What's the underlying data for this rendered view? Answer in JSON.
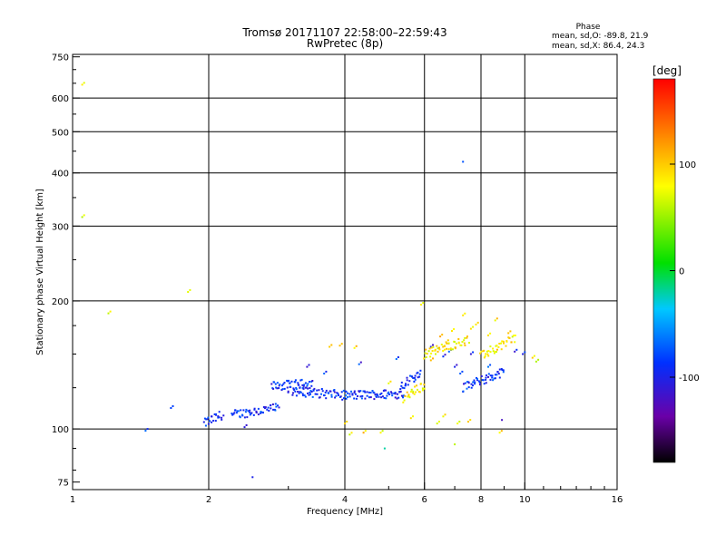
{
  "chart_data": {
    "type": "scatter",
    "title": "Tromsø 20171107 22:58:00–22:59:43",
    "subtitle": "RwPretec (8p)",
    "xlabel": "Frequency [MHz]",
    "ylabel": "Stationary phase Virtual Height [km]",
    "x_scale": "log",
    "y_scale": "log",
    "xlim": [
      1,
      16
    ],
    "ylim": [
      72,
      760
    ],
    "x_ticks": [
      1,
      2,
      4,
      6,
      8,
      10,
      16
    ],
    "x_tick_labels": [
      "1",
      "2",
      "4",
      "6",
      "8",
      "10",
      "16"
    ],
    "y_ticks": [
      75,
      100,
      200,
      300,
      400,
      500,
      600,
      750
    ],
    "y_tick_labels": [
      "75",
      "100",
      "200",
      "300",
      "400",
      "500",
      "600",
      "750"
    ],
    "x_grid": [
      2,
      4,
      6,
      8,
      10
    ],
    "y_grid": [
      100,
      200,
      300,
      400,
      500,
      600
    ],
    "grid": true,
    "stats": {
      "heading": "Phase",
      "line_o": "mean, sd,O: -89.8, 21.9",
      "line_x": "mean, sd,X:  86.4, 24.3"
    },
    "colorbar": {
      "label": "[deg]",
      "range": [
        -180,
        180
      ],
      "ticks": [
        -100,
        0,
        100
      ],
      "tick_labels": [
        "-100",
        "0",
        "100"
      ],
      "colormap": "rainbow"
    },
    "series": [
      {
        "description": "O-mode trace (phase ≈ -90 deg)",
        "phase_mean": -90,
        "segments": [
          {
            "from": [
              1.95,
              103
            ],
            "to": [
              2.15,
              108
            ]
          },
          {
            "from": [
              2.25,
              108
            ],
            "to": [
              2.85,
              112
            ]
          },
          {
            "from": [
              2.75,
              126
            ],
            "to": [
              3.4,
              128
            ]
          },
          {
            "from": [
              3.0,
              123
            ],
            "to": [
              4.0,
              120
            ]
          },
          {
            "from": [
              4.0,
              120
            ],
            "to": [
              5.4,
              121
            ]
          },
          {
            "from": [
              5.3,
              126
            ],
            "to": [
              5.9,
              136
            ]
          },
          {
            "from": [
              7.3,
              125
            ],
            "to": [
              9.0,
              136
            ]
          }
        ],
        "extra_points": [
          [
            1.45,
            99
          ],
          [
            1.65,
            112
          ],
          [
            2.4,
            101
          ],
          [
            3.3,
            140
          ],
          [
            3.6,
            135
          ],
          [
            4.3,
            142
          ],
          [
            5.2,
            146
          ],
          [
            6.2,
            156
          ],
          [
            6.6,
            148
          ],
          [
            7.0,
            140
          ],
          [
            7.6,
            150
          ],
          [
            8.3,
            140
          ],
          [
            9.9,
            150
          ],
          [
            9.5,
            152
          ],
          [
            6.8,
            152
          ],
          [
            7.2,
            135
          ]
        ]
      },
      {
        "description": "X-mode trace (phase ≈ +90 deg)",
        "phase_mean": 86,
        "segments": [
          {
            "from": [
              5.4,
              118
            ],
            "to": [
              6.0,
              127
            ]
          },
          {
            "from": [
              6.0,
              150
            ],
            "to": [
              7.5,
              162
            ]
          },
          {
            "from": [
              8.0,
              148
            ],
            "to": [
              9.5,
              164
            ]
          }
        ],
        "extra_points": [
          [
            1.05,
            645
          ],
          [
            1.05,
            315
          ],
          [
            1.2,
            187
          ],
          [
            1.8,
            210
          ],
          [
            3.7,
            156
          ],
          [
            3.9,
            157
          ],
          [
            4.1,
            97
          ],
          [
            4.4,
            98
          ],
          [
            4.8,
            98
          ],
          [
            4.0,
            103
          ],
          [
            5.6,
            106
          ],
          [
            6.2,
            145
          ],
          [
            6.5,
            165
          ],
          [
            6.7,
            160
          ],
          [
            6.9,
            170
          ],
          [
            7.3,
            185
          ],
          [
            7.6,
            172
          ],
          [
            7.8,
            176
          ],
          [
            8.3,
            166
          ],
          [
            8.6,
            180
          ],
          [
            8.8,
            98
          ],
          [
            9.2,
            168
          ],
          [
            10.4,
            147
          ],
          [
            10.6,
            144
          ],
          [
            6.4,
            103
          ],
          [
            6.6,
            107
          ],
          [
            7.1,
            103
          ],
          [
            7.5,
            104
          ],
          [
            5.9,
            196
          ],
          [
            4.2,
            155
          ],
          [
            5.0,
            128
          ]
        ]
      }
    ],
    "outliers": [
      [
        7.3,
        425,
        -75
      ],
      [
        2.5,
        77,
        -100
      ],
      [
        4.9,
        90,
        -20
      ],
      [
        7.0,
        92,
        60
      ],
      [
        8.9,
        105,
        -120
      ]
    ]
  }
}
